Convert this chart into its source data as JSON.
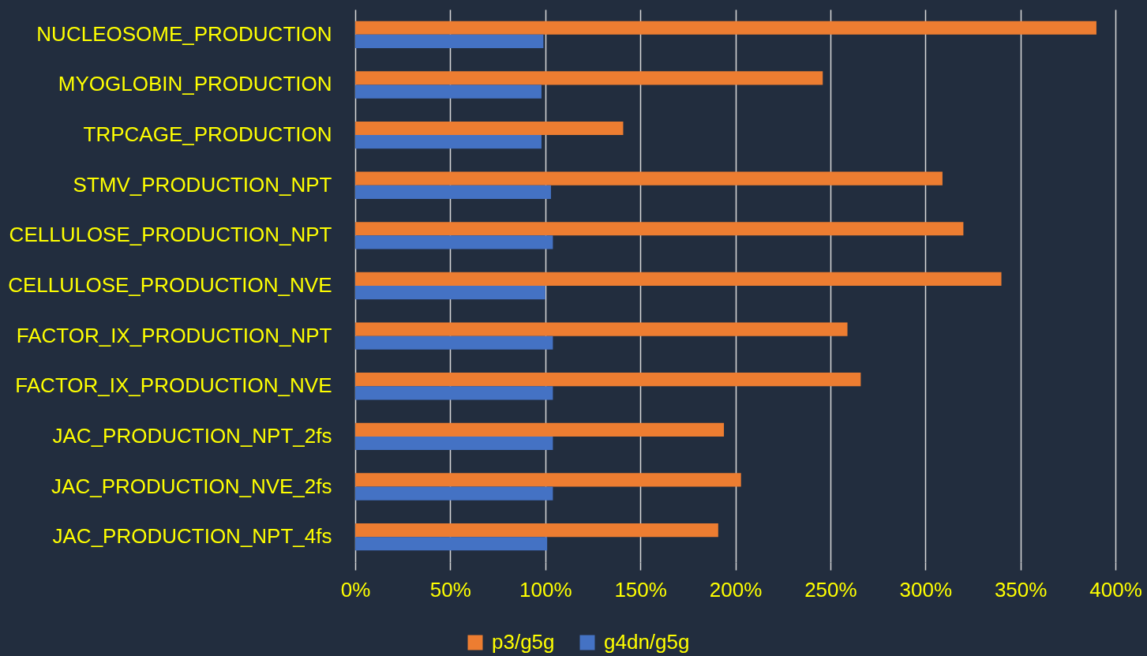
{
  "chart_data": {
    "type": "bar",
    "orientation": "horizontal",
    "categories": [
      "NUCLEOSOME_PRODUCTION",
      "MYOGLOBIN_PRODUCTION",
      "TRPCAGE_PRODUCTION",
      "STMV_PRODUCTION_NPT",
      "CELLULOSE_PRODUCTION_NPT",
      "CELLULOSE_PRODUCTION_NVE",
      "FACTOR_IX_PRODUCTION_NPT",
      "FACTOR_IX_PRODUCTION_NVE",
      "JAC_PRODUCTION_NPT_2fs",
      "JAC_PRODUCTION_NVE_2fs",
      "JAC_PRODUCTION_NPT_4fs"
    ],
    "series": [
      {
        "name": "p3/g5g",
        "color": "#ed7d31",
        "values": [
          390,
          246,
          141,
          309,
          320,
          340,
          259,
          266,
          194,
          203,
          191
        ]
      },
      {
        "name": "g4dn/g5g",
        "color": "#4472c4",
        "values": [
          99,
          98,
          98,
          103,
          104,
          100,
          104,
          104,
          104,
          104,
          101
        ]
      }
    ],
    "xlim": [
      0,
      400
    ],
    "xticks": [
      {
        "value": 0,
        "label": "0%"
      },
      {
        "value": 50,
        "label": "50%"
      },
      {
        "value": 100,
        "label": "100%"
      },
      {
        "value": 150,
        "label": "150%"
      },
      {
        "value": 200,
        "label": "200%"
      },
      {
        "value": 250,
        "label": "250%"
      },
      {
        "value": 300,
        "label": "300%"
      },
      {
        "value": 350,
        "label": "350%"
      },
      {
        "value": 400,
        "label": "400%"
      }
    ],
    "grid": "x",
    "legend": "bottom"
  }
}
